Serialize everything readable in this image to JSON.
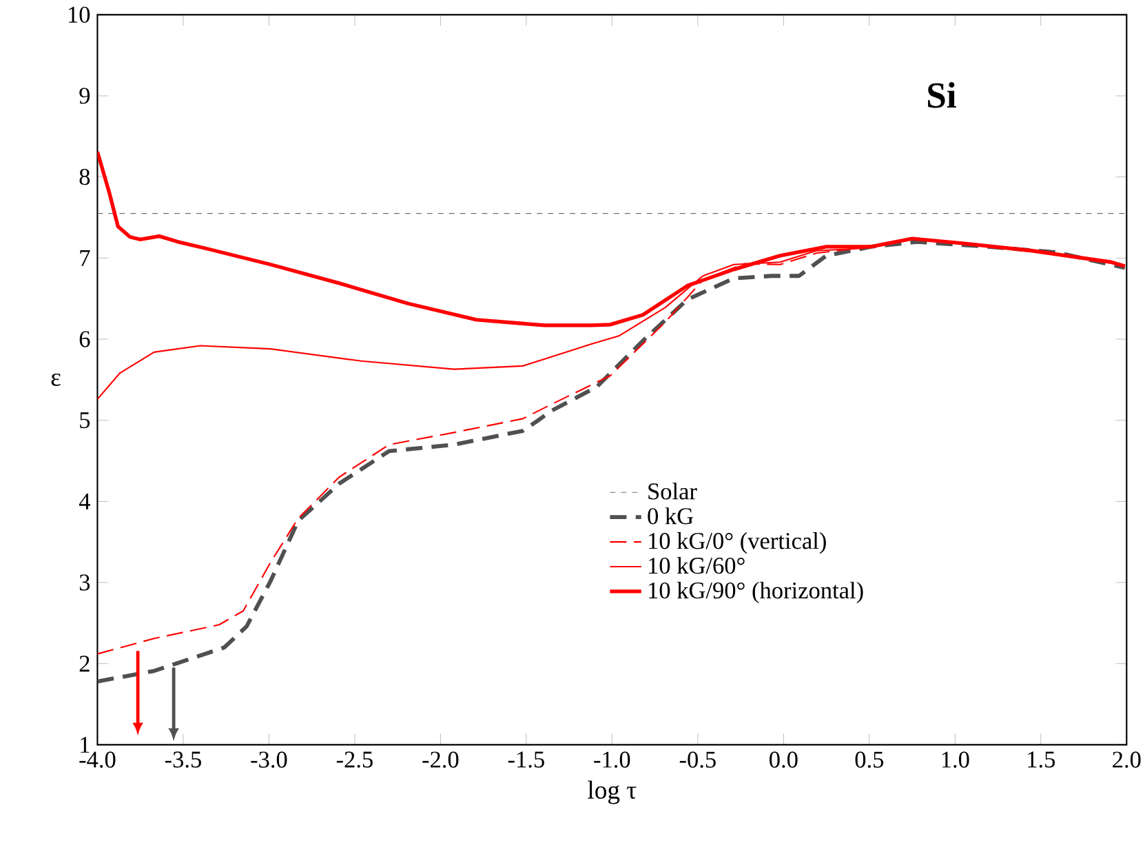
{
  "chart_data": {
    "type": "line",
    "xlabel": "log τ",
    "ylabel": "ε",
    "annotations": [
      "**Si**"
    ],
    "xlim": [
      -4.0,
      2.0
    ],
    "ylim": [
      1,
      10
    ],
    "xticks": [
      {
        "value": -4.0,
        "label": "-4.0"
      },
      {
        "value": -3.5,
        "label": "-3.5"
      },
      {
        "value": -3.0,
        "label": "-3.0"
      },
      {
        "value": -2.5,
        "label": "-2.5"
      },
      {
        "value": -2.0,
        "label": "-2.0"
      },
      {
        "value": -1.5,
        "label": "-1.5"
      },
      {
        "value": -1.0,
        "label": "-1.0"
      },
      {
        "value": -0.5,
        "label": "-0.5"
      },
      {
        "value": 0.0,
        "label": "0.0"
      },
      {
        "value": 0.5,
        "label": "0.5"
      },
      {
        "value": 1.0,
        "label": "1.0"
      },
      {
        "value": 1.5,
        "label": "1.5"
      },
      {
        "value": 2.0,
        "label": "2.0"
      }
    ],
    "yticks": [
      1,
      2,
      3,
      4,
      5,
      6,
      7,
      8,
      9,
      10
    ],
    "ref_lines": [
      {
        "axis": "y",
        "value": 7.55,
        "label": "Solar",
        "color": "#707070",
        "line_style": "dashed"
      }
    ],
    "legend": "bottom right",
    "grid": false,
    "marker": "none",
    "series": [
      {
        "name": "0 kG",
        "color": "#505050",
        "line_style": "dashed",
        "x": [
          -4.0,
          -3.67,
          -3.26,
          -3.13,
          -2.99,
          -2.83,
          -2.59,
          -2.3,
          -1.92,
          -1.52,
          -1.43,
          -1.36,
          -1.09,
          -0.82,
          -0.56,
          -0.29,
          -0.07,
          0.09,
          0.25,
          0.51,
          0.78,
          1.19,
          1.59,
          1.99
        ],
        "values": [
          1.78,
          1.91,
          2.2,
          2.46,
          3.02,
          3.76,
          4.22,
          4.62,
          4.7,
          4.87,
          5.0,
          5.11,
          5.41,
          5.98,
          6.49,
          6.75,
          6.78,
          6.78,
          7.03,
          7.14,
          7.2,
          7.14,
          7.07,
          6.88
        ]
      },
      {
        "name": "10 kG/0° (vertical)",
        "color": "#ff0000",
        "line_style": "dashed",
        "x": [
          -4.0,
          -3.67,
          -3.29,
          -3.15,
          -2.99,
          -2.83,
          -2.59,
          -2.3,
          -1.92,
          -1.52,
          -1.36,
          -1.01,
          -0.69,
          -0.47,
          -0.23,
          -0.02,
          0.19,
          0.51,
          0.75,
          1.05,
          1.45,
          1.91,
          1.99
        ],
        "values": [
          2.12,
          2.31,
          2.48,
          2.65,
          3.25,
          3.79,
          4.3,
          4.7,
          4.85,
          5.02,
          5.19,
          5.55,
          6.21,
          6.73,
          6.93,
          6.92,
          7.06,
          7.14,
          7.24,
          7.18,
          7.09,
          6.95,
          6.9
        ]
      },
      {
        "name": "10 kG/60°",
        "color": "#ff0000",
        "line_style": "solid",
        "x": [
          -4.0,
          -3.87,
          -3.67,
          -3.4,
          -2.99,
          -2.46,
          -1.92,
          -1.52,
          -1.12,
          -0.96,
          -0.69,
          -0.47,
          -0.29,
          -0.02,
          0.19,
          0.46,
          0.75,
          1.05,
          1.45,
          1.91,
          1.99
        ],
        "values": [
          5.26,
          5.58,
          5.84,
          5.92,
          5.88,
          5.73,
          5.63,
          5.67,
          5.94,
          6.04,
          6.39,
          6.78,
          6.92,
          6.95,
          7.09,
          7.12,
          7.24,
          7.18,
          7.09,
          6.95,
          6.9
        ]
      },
      {
        "name": "10 kG/90° (horizontal)",
        "color": "#ff0000",
        "line_style": "solid",
        "x": [
          -4.0,
          -3.93,
          -3.88,
          -3.81,
          -3.75,
          -3.64,
          -3.53,
          -3.37,
          -2.99,
          -2.59,
          -2.19,
          -1.79,
          -1.39,
          -1.12,
          -1.01,
          -0.82,
          -0.56,
          -0.29,
          -0.02,
          0.25,
          0.51,
          0.75,
          1.05,
          1.45,
          1.91,
          1.99
        ],
        "values": [
          8.31,
          7.8,
          7.39,
          7.26,
          7.23,
          7.27,
          7.2,
          7.12,
          6.92,
          6.69,
          6.44,
          6.24,
          6.17,
          6.17,
          6.18,
          6.3,
          6.66,
          6.86,
          7.03,
          7.14,
          7.14,
          7.24,
          7.18,
          7.09,
          6.95,
          6.9
        ]
      }
    ]
  }
}
